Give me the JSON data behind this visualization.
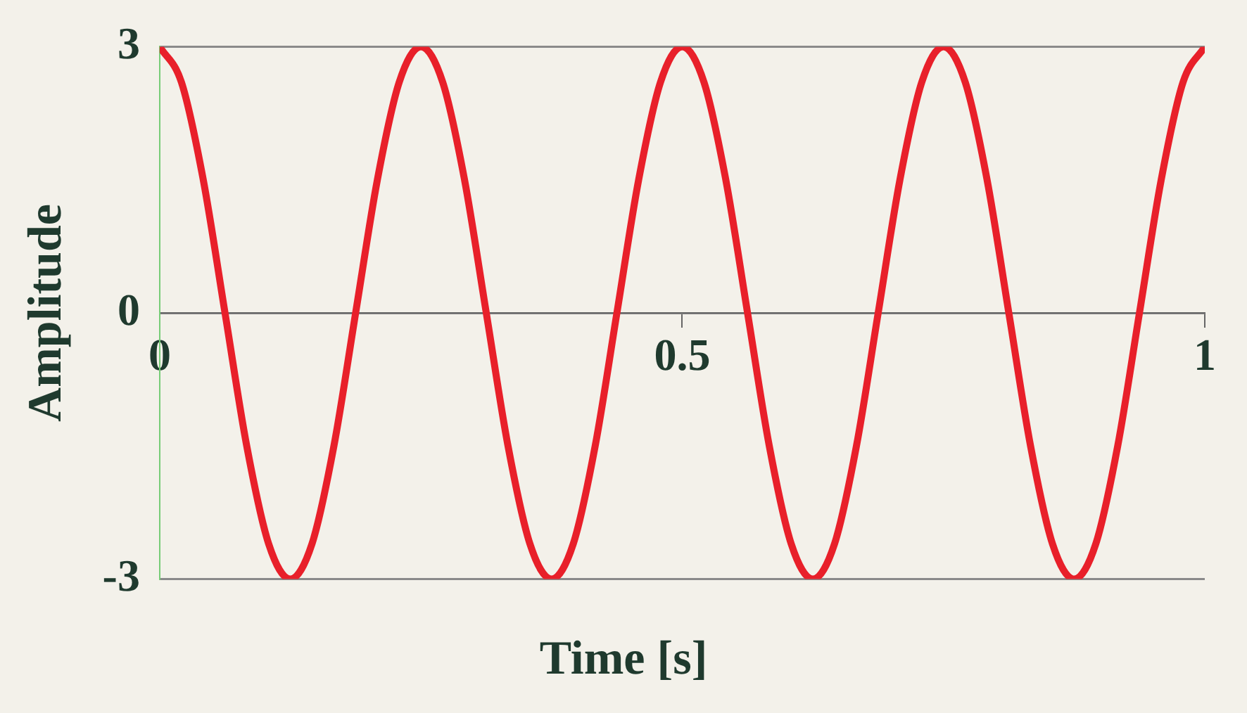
{
  "chart_data": {
    "type": "line",
    "xlabel": "Time [s]",
    "ylabel": "Amplitude",
    "x": [
      0,
      0.0208,
      0.0417,
      0.0625,
      0.0833,
      0.1042,
      0.125,
      0.1458,
      0.1667,
      0.1875,
      0.2083,
      0.2292,
      0.25,
      0.2708,
      0.2917,
      0.3125,
      0.3333,
      0.3542,
      0.375,
      0.3958,
      0.4167,
      0.4375,
      0.4583,
      0.4792,
      0.5,
      0.5208,
      0.5417,
      0.5625,
      0.5833,
      0.6042,
      0.625,
      0.6458,
      0.6667,
      0.6875,
      0.7083,
      0.7292,
      0.75,
      0.7708,
      0.7917,
      0.8125,
      0.8333,
      0.8542,
      0.875,
      0.8958,
      0.9167,
      0.9375,
      0.9583,
      0.9792,
      1
    ],
    "series": [
      {
        "color": "#e8202a",
        "values": [
          3,
          2.6,
          1.5,
          0,
          -1.5,
          -2.6,
          -3,
          -2.6,
          -1.5,
          0,
          1.5,
          2.6,
          3,
          2.6,
          1.5,
          0,
          -1.5,
          -2.6,
          -3,
          -2.6,
          -1.5,
          0,
          1.5,
          2.6,
          3,
          2.6,
          1.5,
          0,
          -1.5,
          -2.6,
          -3,
          -2.6,
          -1.5,
          0,
          1.5,
          2.6,
          3,
          2.6,
          1.5,
          0,
          -1.5,
          -2.6,
          -3,
          -2.6,
          -1.5,
          0,
          1.5,
          2.6,
          3
        ]
      }
    ],
    "xlim": [
      0,
      1
    ],
    "xticks": [
      0,
      0.5,
      1
    ],
    "ylim": [
      -3,
      3
    ],
    "yticks": [
      -3,
      0,
      3
    ],
    "grid": "y",
    "legend": false,
    "marker": "none",
    "line_style": "solid"
  }
}
